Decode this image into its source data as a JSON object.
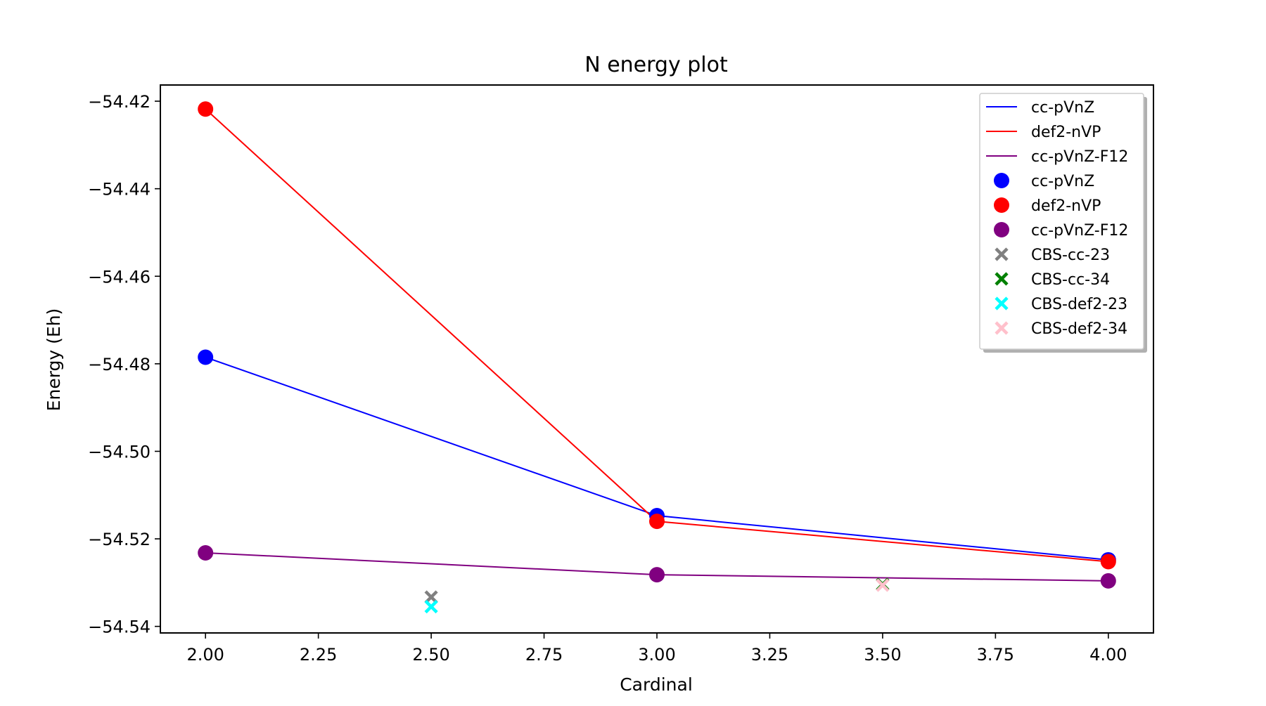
{
  "chart_data": {
    "type": "line",
    "title": "N energy plot",
    "xlabel": "Cardinal",
    "ylabel": "Energy (Eh)",
    "xlim": [
      1.9,
      4.1
    ],
    "ylim": [
      -54.5415,
      -54.4163
    ],
    "grid": false,
    "legend_position": "top-right",
    "x_ticks": [
      2.0,
      2.25,
      2.5,
      2.75,
      3.0,
      3.25,
      3.5,
      3.75,
      4.0
    ],
    "x_tick_labels": [
      "2.00",
      "2.25",
      "2.50",
      "2.75",
      "3.00",
      "3.25",
      "3.50",
      "3.75",
      "4.00"
    ],
    "y_ticks": [
      -54.42,
      -54.44,
      -54.46,
      -54.48,
      -54.5,
      -54.52,
      -54.54
    ],
    "y_tick_labels": [
      "−54.42",
      "−54.44",
      "−54.46",
      "−54.48",
      "−54.50",
      "−54.52",
      "−54.54"
    ],
    "line_series": [
      {
        "name": "cc-pVnZ",
        "color": "#0000ff",
        "x": [
          2,
          3,
          4
        ],
        "y": [
          -54.4785,
          -54.5147,
          -54.5248
        ]
      },
      {
        "name": "def2-nVP",
        "color": "#ff0000",
        "x": [
          2,
          3,
          4
        ],
        "y": [
          -54.4218,
          -54.516,
          -54.5252
        ]
      },
      {
        "name": "cc-pVnZ-F12",
        "color": "#800080",
        "x": [
          2,
          3,
          4
        ],
        "y": [
          -54.5232,
          -54.5282,
          -54.5296
        ]
      }
    ],
    "cbs_series": [
      {
        "name": "CBS-cc-23",
        "color": "#808080",
        "x": [
          2.5
        ],
        "y": [
          -54.5333
        ]
      },
      {
        "name": "CBS-cc-34",
        "color": "#008000",
        "x": [
          3.5
        ],
        "y": [
          -54.5304
        ]
      },
      {
        "name": "CBS-def2-23",
        "color": "#00ffff",
        "x": [
          2.5
        ],
        "y": [
          -54.5355
        ]
      },
      {
        "name": "CBS-def2-34",
        "color": "#ffc0cb",
        "x": [
          3.5
        ],
        "y": [
          -54.5306
        ]
      }
    ]
  }
}
